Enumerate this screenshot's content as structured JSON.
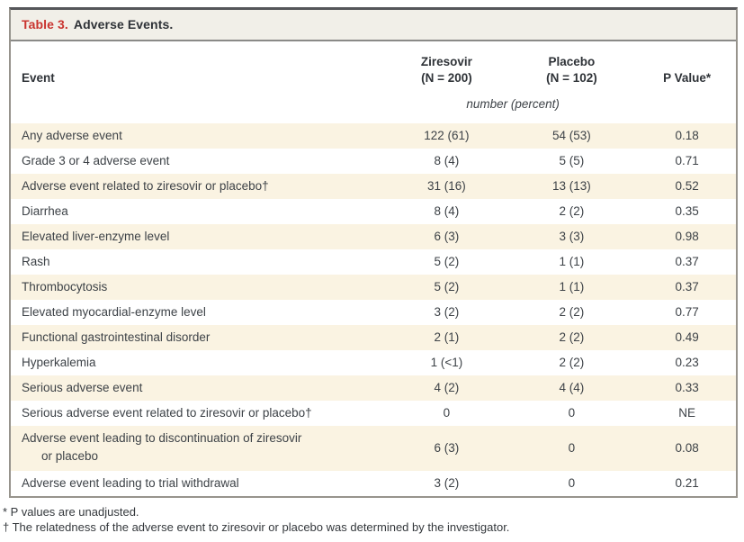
{
  "title": {
    "label": "Table 3.",
    "text": "Adverse Events."
  },
  "columns": [
    {
      "label": "Event",
      "sub": ""
    },
    {
      "label": "Ziresovir",
      "sub": "(N = 200)"
    },
    {
      "label": "Placebo",
      "sub": "(N = 102)"
    },
    {
      "label": "P Value*",
      "sub": ""
    }
  ],
  "units": "number (percent)",
  "rows": [
    {
      "event": "Any adverse event",
      "ziresovir": "122 (61)",
      "placebo": "54 (53)",
      "p": "0.18"
    },
    {
      "event": "Grade 3 or 4 adverse event",
      "ziresovir": "8 (4)",
      "placebo": "5 (5)",
      "p": "0.71"
    },
    {
      "event": "Adverse event related to ziresovir or placebo†",
      "ziresovir": "31 (16)",
      "placebo": "13 (13)",
      "p": "0.52"
    },
    {
      "event": "Diarrhea",
      "ziresovir": "8 (4)",
      "placebo": "2 (2)",
      "p": "0.35"
    },
    {
      "event": "Elevated liver-enzyme level",
      "ziresovir": "6 (3)",
      "placebo": "3 (3)",
      "p": "0.98"
    },
    {
      "event": "Rash",
      "ziresovir": "5 (2)",
      "placebo": "1 (1)",
      "p": "0.37"
    },
    {
      "event": "Thrombocytosis",
      "ziresovir": "5 (2)",
      "placebo": "1 (1)",
      "p": "0.37"
    },
    {
      "event": "Elevated myocardial-enzyme level",
      "ziresovir": "3 (2)",
      "placebo": "2 (2)",
      "p": "0.77"
    },
    {
      "event": "Functional gastrointestinal disorder",
      "ziresovir": "2 (1)",
      "placebo": "2 (2)",
      "p": "0.49"
    },
    {
      "event": "Hyperkalemia",
      "ziresovir": "1 (<1)",
      "placebo": "2 (2)",
      "p": "0.23"
    },
    {
      "event": "Serious adverse event",
      "ziresovir": "4 (2)",
      "placebo": "4 (4)",
      "p": "0.33"
    },
    {
      "event": "Serious adverse event related to ziresovir or placebo†",
      "ziresovir": "0",
      "placebo": "0",
      "p": "NE"
    },
    {
      "event": "Adverse event leading to discontinuation of ziresovir",
      "event2": "or placebo",
      "ziresovir": "6 (3)",
      "placebo": "0",
      "p": "0.08"
    },
    {
      "event": "Adverse event leading to trial withdrawal",
      "ziresovir": "3 (2)",
      "placebo": "0",
      "p": "0.21"
    }
  ],
  "footnotes": [
    "* P values are unadjusted.",
    "† The relatedness of the adverse event to ziresovir or placebo was determined by the investigator."
  ],
  "colors": {
    "accent_red": "#c9342f",
    "stripe": "#faf3e2",
    "title_bar_bg": "#f1efe8",
    "border_dark": "#55565a",
    "border_light": "#97948d",
    "text": "#3d4247"
  },
  "chart_data": {
    "type": "table",
    "title": "Table 3. Adverse Events.",
    "columns": [
      "Event",
      "Ziresovir (N = 200)",
      "Placebo (N = 102)",
      "P Value*"
    ],
    "units": "number (percent)",
    "rows": [
      [
        "Any adverse event",
        "122 (61)",
        "54 (53)",
        "0.18"
      ],
      [
        "Grade 3 or 4 adverse event",
        "8 (4)",
        "5 (5)",
        "0.71"
      ],
      [
        "Adverse event related to ziresovir or placebo†",
        "31 (16)",
        "13 (13)",
        "0.52"
      ],
      [
        "Diarrhea",
        "8 (4)",
        "2 (2)",
        "0.35"
      ],
      [
        "Elevated liver-enzyme level",
        "6 (3)",
        "3 (3)",
        "0.98"
      ],
      [
        "Rash",
        "5 (2)",
        "1 (1)",
        "0.37"
      ],
      [
        "Thrombocytosis",
        "5 (2)",
        "1 (1)",
        "0.37"
      ],
      [
        "Elevated myocardial-enzyme level",
        "3 (2)",
        "2 (2)",
        "0.77"
      ],
      [
        "Functional gastrointestinal disorder",
        "2 (1)",
        "2 (2)",
        "0.49"
      ],
      [
        "Hyperkalemia",
        "1 (<1)",
        "2 (2)",
        "0.23"
      ],
      [
        "Serious adverse event",
        "4 (2)",
        "4 (4)",
        "0.33"
      ],
      [
        "Serious adverse event related to ziresovir or placebo†",
        "0",
        "0",
        "NE"
      ],
      [
        "Adverse event leading to discontinuation of ziresovir or placebo",
        "6 (3)",
        "0",
        "0.08"
      ],
      [
        "Adverse event leading to trial withdrawal",
        "3 (2)",
        "0",
        "0.21"
      ]
    ],
    "footnotes": [
      "* P values are unadjusted.",
      "† The relatedness of the adverse event to ziresovir or placebo was determined by the investigator."
    ]
  }
}
